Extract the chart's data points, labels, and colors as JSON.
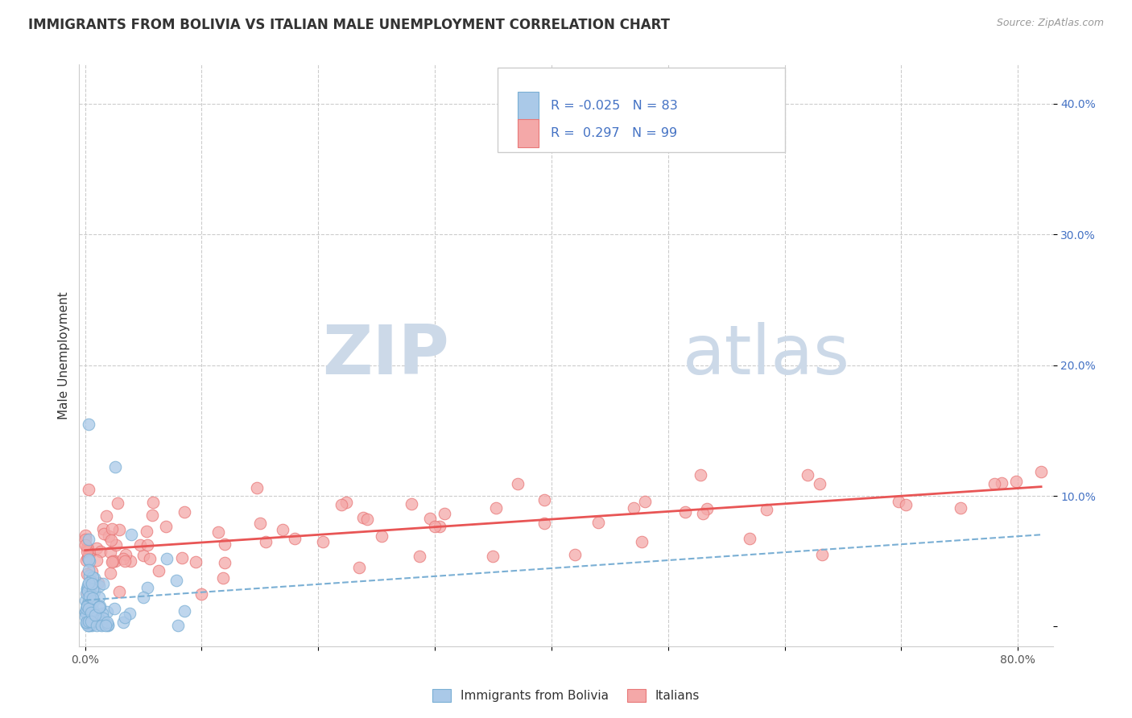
{
  "title": "IMMIGRANTS FROM BOLIVIA VS ITALIAN MALE UNEMPLOYMENT CORRELATION CHART",
  "source": "Source: ZipAtlas.com",
  "ylabel_label": "Male Unemployment",
  "watermark_zip": "ZIP",
  "watermark_atlas": "atlas",
  "R_bolivia": -0.025,
  "N_bolivia": 83,
  "R_italians": 0.297,
  "N_italians": 99,
  "xlim": [
    -0.005,
    0.83
  ],
  "ylim": [
    -0.015,
    0.43
  ],
  "bolivia_color": "#aac9e8",
  "bolivia_edge": "#7aafd4",
  "italians_color": "#f4a8a8",
  "italians_edge": "#e87878",
  "trend_bolivia_color": "#7aafd4",
  "trend_italians_color": "#e85555",
  "background_color": "#ffffff",
  "grid_color": "#cccccc",
  "title_color": "#333333",
  "source_color": "#999999",
  "ytick_color": "#4472c4",
  "xtick_color": "#555555",
  "legend_entries": [
    "Immigrants from Bolivia",
    "Italians"
  ],
  "legend_text_color": "#4472c4",
  "legend_border_color": "#cccccc",
  "watermark_color": "#ccd9e8"
}
